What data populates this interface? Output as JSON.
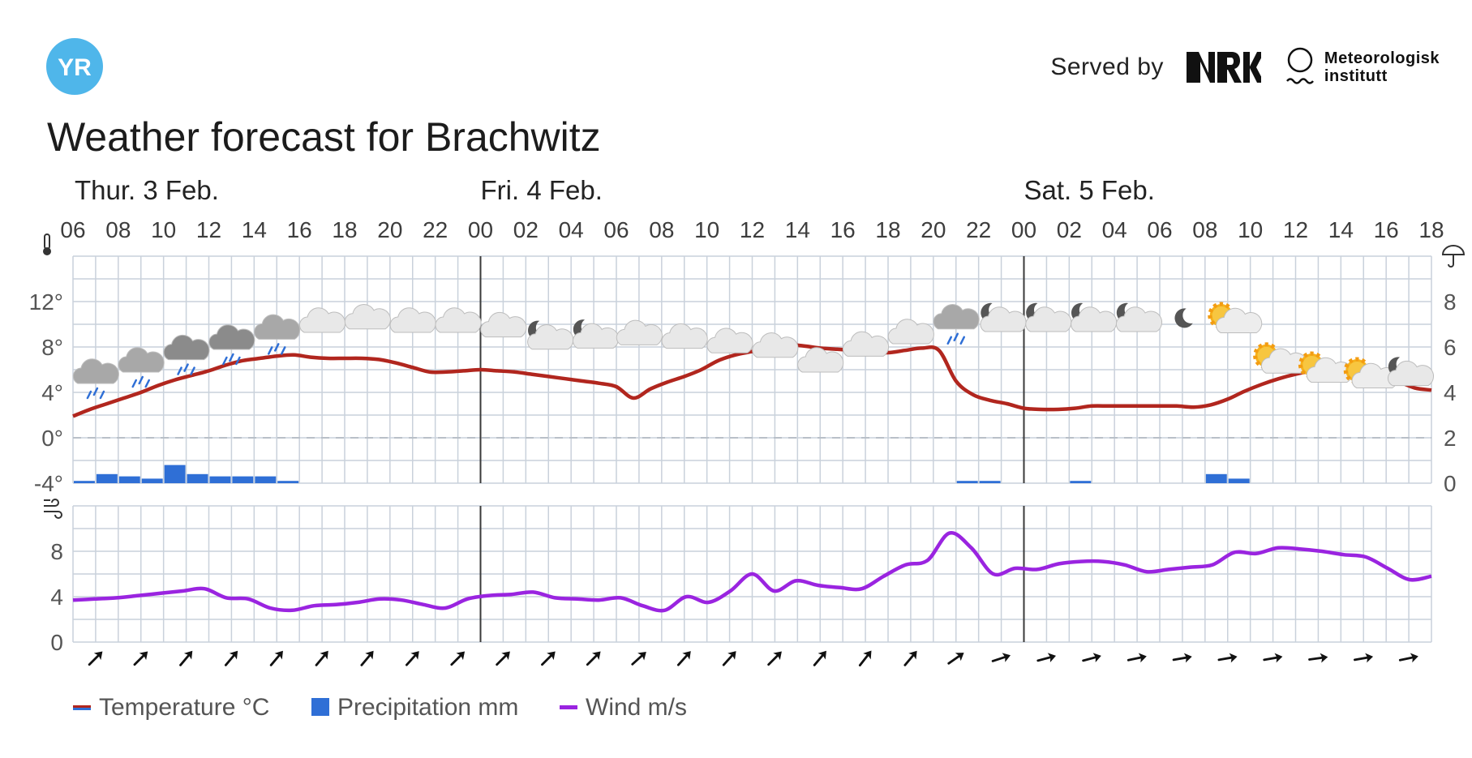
{
  "header": {
    "logo_text": "YR",
    "served_by": "Served by",
    "nrk_logo": "NRK",
    "met_line1": "Meteorologisk",
    "met_line2": "institutt",
    "title": "Weather forecast for Brachwitz"
  },
  "colors": {
    "temperature": "#b1261e",
    "precipitation": "#2f6fd6",
    "wind": "#9a24e0",
    "grid": "#c9d1db",
    "yr_logo": "#4fb6ea"
  },
  "chart_data": {
    "type": "line",
    "start_hour": "06",
    "hours": [
      "06",
      "08",
      "10",
      "12",
      "14",
      "16",
      "18",
      "20",
      "22",
      "00",
      "02",
      "04",
      "06",
      "08",
      "10",
      "12",
      "14",
      "16",
      "18",
      "20",
      "22",
      "00",
      "02",
      "04",
      "06",
      "08",
      "10",
      "12",
      "14",
      "16",
      "18"
    ],
    "days": [
      {
        "label": "Thur. 3 Feb.",
        "first_hour_index": 0
      },
      {
        "label": "Fri. 4 Feb.",
        "first_hour_index": 18
      },
      {
        "label": "Sat. 5 Feb.",
        "first_hour_index": 42
      }
    ],
    "temperature_axis": {
      "ticks": [
        "12°",
        "8°",
        "4°",
        "0°",
        "-4°"
      ],
      "values": [
        12,
        8,
        4,
        0,
        -4
      ],
      "ylim": [
        -4,
        16
      ],
      "icon": "thermometer-icon"
    },
    "precipitation_axis": {
      "ticks": [
        "8",
        "6",
        "4",
        "2",
        "0"
      ],
      "values": [
        8,
        6,
        4,
        2,
        0
      ],
      "ylim": [
        0,
        10
      ],
      "icon": "umbrella-icon"
    },
    "wind_axis": {
      "ticks": [
        "8",
        "4",
        "0"
      ],
      "values": [
        8,
        4,
        0
      ],
      "ylim": [
        0,
        12
      ],
      "icon": "wind-icon"
    },
    "series": [
      {
        "name": "Temperature °C",
        "values": [
          1.9,
          2.5,
          3.0,
          3.5,
          4.0,
          4.6,
          5.1,
          5.5,
          5.9,
          6.4,
          6.8,
          7.0,
          7.2,
          7.3,
          7.1,
          7.0,
          7.0,
          7.0,
          6.9,
          6.6,
          6.2,
          5.8,
          5.8,
          5.9,
          6.0,
          5.9,
          5.8,
          5.6,
          5.4,
          5.2,
          5.0,
          4.8,
          4.5,
          3.5,
          4.3,
          4.9,
          5.4,
          6.0,
          6.8,
          7.3,
          7.6,
          7.9,
          8.2,
          8.1,
          7.9,
          7.8,
          7.7,
          7.6,
          7.5,
          7.7,
          7.9,
          7.7,
          5.0,
          3.8,
          3.3,
          3.0,
          2.6,
          2.5,
          2.5,
          2.6,
          2.8,
          2.8,
          2.8,
          2.8,
          2.8,
          2.8,
          2.7,
          2.9,
          3.4,
          4.1,
          4.7,
          5.2,
          5.6,
          5.9,
          6.0,
          6.1,
          6.1,
          5.6,
          5.0,
          4.4,
          4.2
        ]
      },
      {
        "name": "Precipitation mm",
        "values": [
          0.1,
          0.4,
          0.3,
          0.2,
          0.8,
          0.4,
          0.3,
          0.3,
          0.3,
          0.1,
          0,
          0,
          0,
          0,
          0,
          0,
          0,
          0,
          0,
          0,
          0,
          0,
          0,
          0,
          0,
          0,
          0,
          0,
          0,
          0,
          0,
          0,
          0,
          0,
          0,
          0,
          0,
          0,
          0,
          0.1,
          0.1,
          0,
          0,
          0,
          0.1,
          0,
          0,
          0,
          0,
          0,
          0.4,
          0.2,
          0,
          0,
          0,
          0,
          0,
          0,
          0,
          0,
          0,
          0,
          0,
          0,
          0,
          0,
          0,
          0,
          0,
          0,
          0,
          0,
          0,
          0,
          0,
          0,
          0,
          0,
          0,
          0
        ]
      },
      {
        "name": "Wind m/s",
        "values": [
          3.7,
          3.8,
          3.9,
          4.1,
          4.3,
          4.5,
          4.7,
          3.9,
          3.8,
          3.0,
          2.8,
          3.2,
          3.3,
          3.5,
          3.8,
          3.7,
          3.3,
          3.0,
          3.8,
          4.1,
          4.2,
          4.4,
          3.9,
          3.8,
          3.7,
          3.9,
          3.2,
          2.8,
          4.0,
          3.5,
          4.5,
          6.0,
          4.5,
          5.4,
          5.0,
          4.8,
          4.7,
          5.8,
          6.8,
          7.2,
          9.6,
          8.3,
          6.0,
          6.5,
          6.4,
          6.9,
          7.1,
          7.1,
          6.8,
          6.2,
          6.4,
          6.6,
          6.8,
          7.9,
          7.8,
          8.3,
          8.2,
          8.0,
          7.7,
          7.5,
          6.5,
          5.5,
          5.8
        ]
      }
    ],
    "weather_icons": [
      "rain",
      "rain",
      "heavy-rain",
      "heavy-rain",
      "rain",
      "cloudy",
      "cloudy",
      "cloudy",
      "cloudy",
      "cloudy",
      "partly-cloudy-night",
      "partly-cloudy-night",
      "cloudy",
      "cloudy",
      "cloudy",
      "cloudy",
      "cloudy",
      "cloudy",
      "cloudy",
      "rain",
      "partly-cloudy-night",
      "partly-cloudy-night",
      "partly-cloudy-night",
      "partly-cloudy-night",
      "clear-night",
      "partly-cloudy-sun",
      "partly-cloudy-sun",
      "partly-cloudy-sun",
      "partly-cloudy-sun",
      "partly-cloudy-night"
    ],
    "wind_directions": [
      45,
      45,
      40,
      40,
      40,
      40,
      40,
      42,
      45,
      45,
      45,
      45,
      48,
      42,
      42,
      45,
      40,
      38,
      40,
      55,
      72,
      75,
      75,
      78,
      80,
      80,
      80,
      82,
      80,
      78
    ],
    "legend": [
      {
        "label": "Temperature °C"
      },
      {
        "label": "Precipitation mm"
      },
      {
        "label": "Wind m/s"
      }
    ]
  }
}
